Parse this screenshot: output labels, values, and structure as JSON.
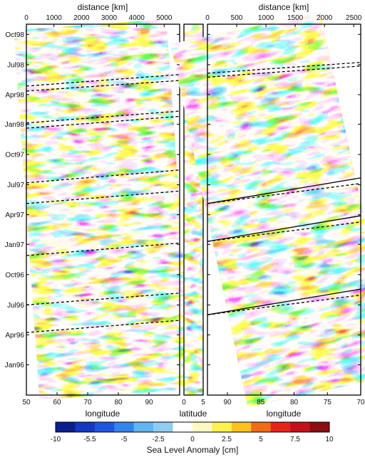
{
  "chart_data": [
    {
      "type": "heatmap",
      "panel": "left",
      "xlabel": "longitude",
      "x_ticks": [
        "50",
        "60",
        "70",
        "80",
        "90"
      ],
      "xlim": [
        50,
        100
      ],
      "top_label": "distance [km]",
      "top_ticks": [
        "0",
        "1000",
        "2000",
        "3000",
        "4000",
        "5000"
      ],
      "top_values": [
        0,
        1000,
        2000,
        3000,
        4000,
        5000
      ],
      "top_lim": [
        0,
        5560
      ],
      "y_ticks": [
        "Oct98",
        "Jul98",
        "Apr98",
        "Jan98",
        "Oct97",
        "Jul97",
        "Apr97",
        "Jan97",
        "Oct96",
        "Jul96",
        "Apr96",
        "Jan96"
      ],
      "y_values": [
        "1998-10",
        "1998-07",
        "1998-04",
        "1998-01",
        "1997-10",
        "1997-07",
        "1997-04",
        "1997-01",
        "1996-10",
        "1996-07",
        "1996-04",
        "1996-01"
      ],
      "ylim": [
        "1995-10",
        "1998-11"
      ],
      "dashed_lines": [
        {
          "x": [
            50,
            100
          ],
          "t": [
            "1998-04-27",
            "1998-06-01"
          ]
        },
        {
          "x": [
            50,
            100
          ],
          "t": [
            "1998-04-12",
            "1998-05-14"
          ]
        },
        {
          "x": [
            50,
            100
          ],
          "t": [
            "1998-01-05",
            "1998-02-10"
          ]
        },
        {
          "x": [
            50,
            100
          ],
          "t": [
            "1997-12-20",
            "1998-01-25"
          ]
        },
        {
          "x": [
            50,
            100
          ],
          "t": [
            "1997-07-07",
            "1997-08-15"
          ]
        },
        {
          "x": [
            50,
            100
          ],
          "t": [
            "1997-05-05",
            "1997-06-12"
          ]
        },
        {
          "x": [
            50,
            100
          ],
          "t": [
            "1996-11-28",
            "1997-01-05"
          ]
        },
        {
          "x": [
            50,
            100
          ],
          "t": [
            "1996-07-01",
            "1996-08-06"
          ]
        },
        {
          "x": [
            50,
            100
          ],
          "t": [
            "1996-04-08",
            "1996-05-15"
          ]
        }
      ]
    },
    {
      "type": "heatmap",
      "panel": "middle",
      "xlabel": "latitude",
      "x_ticks": [
        "0",
        "5"
      ],
      "xlim": [
        0,
        5
      ]
    },
    {
      "type": "heatmap",
      "panel": "right",
      "xlabel": "longitude",
      "x_ticks": [
        "90",
        "85",
        "80",
        "75",
        "70"
      ],
      "xlim": [
        93,
        70
      ],
      "top_label": "distance [km]",
      "top_ticks": [
        "0",
        "500",
        "1000",
        "1500",
        "2000",
        "2500"
      ],
      "top_values": [
        0,
        500,
        1000,
        1500,
        2000,
        2500
      ],
      "top_lim": [
        0,
        2620
      ],
      "solid_lines": [
        {
          "x": [
            93,
            70
          ],
          "t": [
            "1997-05-05",
            "1997-07-22"
          ]
        },
        {
          "x": [
            93,
            70
          ],
          "t": [
            "1997-01-10",
            "1997-03-29"
          ]
        },
        {
          "x": [
            93,
            70
          ],
          "t": [
            "1996-06-01",
            "1996-08-18"
          ]
        }
      ],
      "dashed_lines": [
        {
          "x": [
            93,
            70
          ],
          "t": [
            "1998-06-05",
            "1998-07-08"
          ]
        },
        {
          "x": [
            93,
            70
          ],
          "t": [
            "1998-05-24",
            "1998-06-27"
          ]
        },
        {
          "x": [
            93,
            70
          ],
          "t": [
            "1997-05-05",
            "1997-07-05"
          ]
        },
        {
          "x": [
            93,
            70
          ],
          "t": [
            "1997-01-10",
            "1997-03-10"
          ]
        },
        {
          "x": [
            93,
            70
          ],
          "t": [
            "1996-06-01",
            "1996-07-31"
          ]
        }
      ]
    }
  ],
  "colorbar": {
    "label": "Sea Level Anomaly [cm]",
    "ticks": [
      "-10",
      "-5.5",
      "-5",
      "-2.5",
      "0",
      "2.5",
      "5",
      "7.5",
      "10"
    ],
    "colors": [
      "#0a1e8f",
      "#1437c8",
      "#1f55e6",
      "#2f86ee",
      "#5fb6f2",
      "#8fcdf3",
      "#ffffff",
      "#fff9c0",
      "#fff24a",
      "#fbc21d",
      "#f46a14",
      "#e8231a",
      "#c70f17",
      "#8c0c10"
    ]
  }
}
